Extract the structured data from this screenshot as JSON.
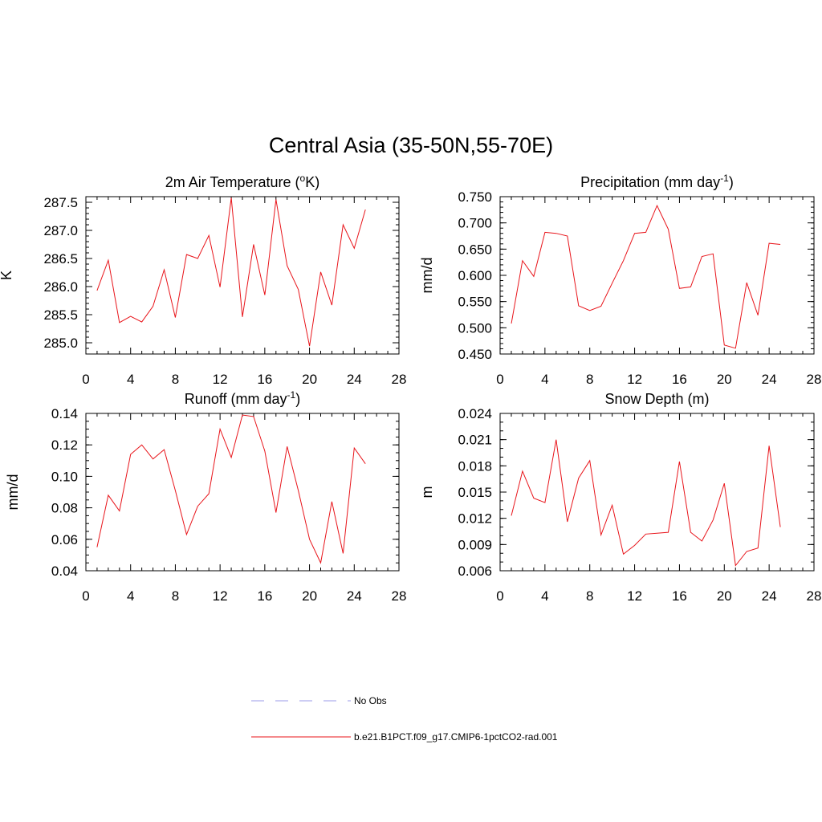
{
  "title": "Central Asia (35-50N,55-70E)",
  "colors": {
    "model": "#e8141a",
    "obs": "#9b9bea",
    "axis": "#000000"
  },
  "legend": [
    {
      "label": "No Obs",
      "style": "dashed",
      "color": "#9b9bea"
    },
    {
      "label": "b.e21.B1PCT.f09_g17.CMIP6-1pctCO2-rad.001",
      "style": "solid",
      "color": "#e8141a"
    }
  ],
  "chart_data": [
    {
      "type": "line",
      "title": "2m Air Temperature (",
      "title_sup": "o",
      "title_after": "K)",
      "ylabel": "K",
      "xlim": [
        0,
        28
      ],
      "xticks": [
        0,
        4,
        8,
        12,
        16,
        20,
        24,
        28
      ],
      "ylim": [
        284.8,
        287.6
      ],
      "yticks": [
        285.0,
        285.5,
        286.0,
        286.5,
        287.0,
        287.5
      ],
      "yticklabels": [
        "285.0",
        "285.5",
        "286.0",
        "286.5",
        "287.0",
        "287.5"
      ],
      "yminor": 0.1,
      "x": [
        1,
        2,
        3,
        4,
        5,
        6,
        7,
        8,
        9,
        10,
        11,
        12,
        13,
        14,
        15,
        16,
        17,
        18,
        19,
        20,
        21,
        22,
        23,
        24,
        25
      ],
      "series": [
        {
          "values": [
            285.93,
            286.47,
            285.36,
            285.47,
            285.37,
            285.65,
            286.3,
            285.45,
            286.57,
            286.5,
            286.91,
            285.99,
            287.58,
            285.46,
            286.75,
            285.85,
            287.55,
            286.37,
            285.95,
            284.94,
            286.26,
            285.67,
            287.1,
            286.68,
            287.37
          ]
        }
      ]
    },
    {
      "type": "line",
      "title": "Precipitation (mm day",
      "title_sup": "-1",
      "title_after": ")",
      "ylabel": "mm/d",
      "xlim": [
        0,
        28
      ],
      "xticks": [
        0,
        4,
        8,
        12,
        16,
        20,
        24,
        28
      ],
      "ylim": [
        0.45,
        0.75
      ],
      "yticks": [
        0.45,
        0.5,
        0.55,
        0.6,
        0.65,
        0.7,
        0.75
      ],
      "yticklabels": [
        "0.450",
        "0.500",
        "0.550",
        "0.600",
        "0.650",
        "0.700",
        "0.750"
      ],
      "yminor": 0.01,
      "x": [
        1,
        2,
        3,
        4,
        5,
        6,
        7,
        8,
        9,
        10,
        11,
        12,
        13,
        14,
        15,
        16,
        17,
        18,
        19,
        20,
        21,
        22,
        23,
        24,
        25
      ],
      "series": [
        {
          "values": [
            0.508,
            0.628,
            0.598,
            0.682,
            0.68,
            0.675,
            0.542,
            0.533,
            0.541,
            0.585,
            0.628,
            0.68,
            0.682,
            0.733,
            0.688,
            0.575,
            0.578,
            0.636,
            0.641,
            0.467,
            0.461,
            0.586,
            0.524,
            0.661,
            0.659
          ]
        }
      ]
    },
    {
      "type": "line",
      "title": "Runoff (mm day",
      "title_sup": "-1",
      "title_after": ")",
      "ylabel": "mm/d",
      "xlim": [
        0,
        28
      ],
      "xticks": [
        0,
        4,
        8,
        12,
        16,
        20,
        24,
        28
      ],
      "ylim": [
        0.04,
        0.14
      ],
      "yticks": [
        0.04,
        0.06,
        0.08,
        0.1,
        0.12,
        0.14
      ],
      "yticklabels": [
        "0.04",
        "0.06",
        "0.08",
        "0.10",
        "0.12",
        "0.14"
      ],
      "yminor": 0.005,
      "x": [
        1,
        2,
        3,
        4,
        5,
        6,
        7,
        8,
        9,
        10,
        11,
        12,
        13,
        14,
        15,
        16,
        17,
        18,
        19,
        20,
        21,
        22,
        23,
        24,
        25
      ],
      "series": [
        {
          "values": [
            0.055,
            0.088,
            0.078,
            0.114,
            0.12,
            0.111,
            0.117,
            0.091,
            0.063,
            0.081,
            0.089,
            0.13,
            0.112,
            0.139,
            0.138,
            0.116,
            0.077,
            0.119,
            0.091,
            0.06,
            0.045,
            0.084,
            0.051,
            0.118,
            0.108
          ]
        }
      ]
    },
    {
      "type": "line",
      "title": "Snow Depth (m)",
      "title_sup": "",
      "title_after": "",
      "ylabel": "m",
      "xlim": [
        0,
        28
      ],
      "xticks": [
        0,
        4,
        8,
        12,
        16,
        20,
        24,
        28
      ],
      "ylim": [
        0.006,
        0.024
      ],
      "yticks": [
        0.006,
        0.009,
        0.012,
        0.015,
        0.018,
        0.021,
        0.024
      ],
      "yticklabels": [
        "0.006",
        "0.009",
        "0.012",
        "0.015",
        "0.018",
        "0.021",
        "0.024"
      ],
      "yminor": 0.001,
      "x": [
        1,
        2,
        3,
        4,
        5,
        6,
        7,
        8,
        9,
        10,
        11,
        12,
        13,
        14,
        15,
        16,
        17,
        18,
        19,
        20,
        21,
        22,
        23,
        24,
        25
      ],
      "series": [
        {
          "values": [
            0.0123,
            0.0174,
            0.0143,
            0.0138,
            0.021,
            0.0116,
            0.0166,
            0.0186,
            0.0101,
            0.0135,
            0.0079,
            0.0089,
            0.0102,
            0.0103,
            0.0104,
            0.0185,
            0.0104,
            0.0094,
            0.0118,
            0.016,
            0.0066,
            0.0082,
            0.0086,
            0.0203,
            0.011
          ]
        }
      ]
    }
  ]
}
